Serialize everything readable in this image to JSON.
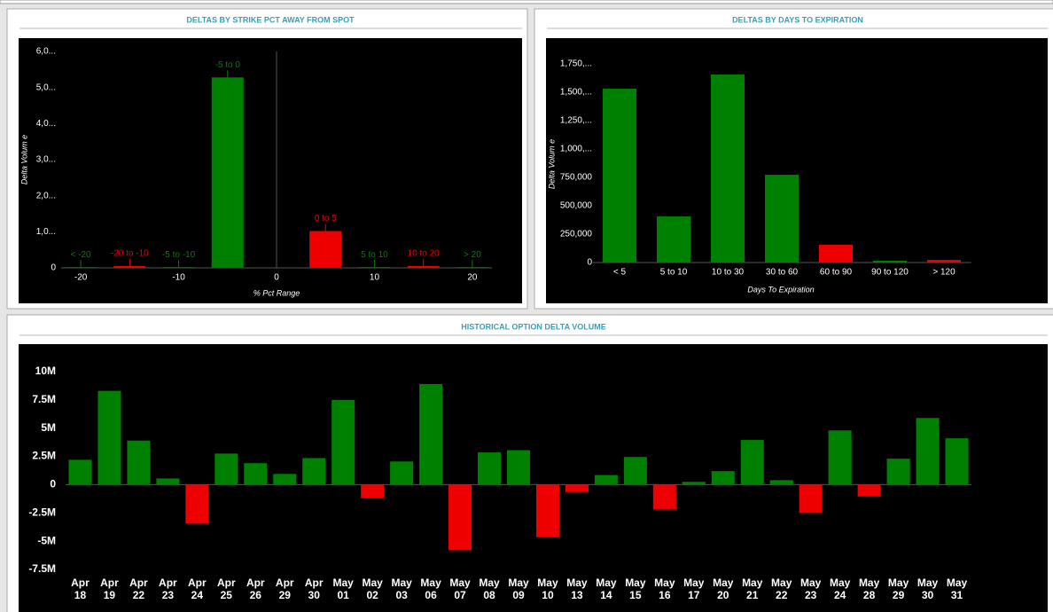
{
  "chart_data": [
    {
      "type": "bar",
      "title": "DELTAS BY STRIKE PCT AWAY FROM SPOT",
      "x_label": "% Pct Range",
      "y_label": "Delta Volum e",
      "categories": [
        "< -20",
        "-20 to -10",
        "-5 to -10",
        "-5 to 0",
        "0 to 5",
        "5 to 10",
        "10 to 20",
        "> 20"
      ],
      "x": [
        -20,
        -15,
        -10,
        -5,
        5,
        10,
        15,
        20
      ],
      "values": [
        20000,
        50000,
        20000,
        5280000,
        1020000,
        20000,
        50000,
        20000
      ],
      "colors": [
        "#008000",
        "#ee0000",
        "#008000",
        "#008000",
        "#ee0000",
        "#008000",
        "#ee0000",
        "#008000"
      ],
      "xlim": [
        -22,
        22
      ],
      "xticks": [
        -20,
        -10,
        0,
        10,
        20
      ],
      "ylim": [
        0,
        6000000
      ],
      "yticks": [
        0,
        {
          "value": 1000000,
          "label": "1,0..."
        },
        {
          "value": 2000000,
          "label": "2,0..."
        },
        {
          "value": 3000000,
          "label": "3,0..."
        },
        {
          "value": 4000000,
          "label": "4,0..."
        },
        {
          "value": 5000000,
          "label": "5,0..."
        },
        {
          "value": 6000000,
          "label": "6,0..."
        }
      ],
      "grid": false
    },
    {
      "type": "bar",
      "title": "DELTAS BY DAYS TO EXPIRATION",
      "x_label": "Days To Expiration",
      "y_label": "Delta Volum e",
      "categories": [
        "< 5",
        "5 to 10",
        "10 to 30",
        "30 to 60",
        "60 to 90",
        "90 to 120",
        "> 120"
      ],
      "values": [
        1531000,
        406000,
        1656000,
        773000,
        156000,
        16000,
        23000
      ],
      "colors": [
        "#008000",
        "#008000",
        "#008000",
        "#008000",
        "#ee0000",
        "#008000",
        "#ee0000"
      ],
      "ylim": [
        0,
        1750000
      ],
      "yticks": [
        0,
        {
          "value": 250000,
          "label": "250,000"
        },
        {
          "value": 500000,
          "label": "500,000"
        },
        {
          "value": 750000,
          "label": "750,000"
        },
        {
          "value": 1000000,
          "label": "1,000,..."
        },
        {
          "value": 1250000,
          "label": "1,250,..."
        },
        {
          "value": 1500000,
          "label": "1,500,..."
        },
        {
          "value": 1750000,
          "label": "1,750,..."
        }
      ],
      "grid": false
    },
    {
      "type": "bar",
      "title": "HISTORICAL OPTION DELTA VOLUME",
      "categories": [
        "Apr 18",
        "Apr 19",
        "Apr 22",
        "Apr 23",
        "Apr 24",
        "Apr 25",
        "Apr 26",
        "Apr 29",
        "Apr 30",
        "May 01",
        "May 02",
        "May 03",
        "May 06",
        "May 07",
        "May 08",
        "May 09",
        "May 10",
        "May 13",
        "May 14",
        "May 15",
        "May 16",
        "May 17",
        "May 20",
        "May 21",
        "May 22",
        "May 23",
        "May 24",
        "May 28",
        "May 29",
        "May 30",
        "May 31"
      ],
      "values": [
        2200000,
        8300000,
        3900000,
        550000,
        -3450000,
        2750000,
        1900000,
        950000,
        2350000,
        7500000,
        -1200000,
        2050000,
        8900000,
        -5800000,
        2850000,
        3050000,
        -4650000,
        -650000,
        850000,
        2450000,
        -2200000,
        250000,
        1200000,
        3950000,
        400000,
        -2500000,
        4800000,
        -1050000,
        2300000,
        5900000,
        4100000
      ],
      "positive_color": "#008000",
      "negative_color": "#ee0000",
      "ylim": [
        -7500000,
        10000000
      ],
      "yticks": [
        {
          "value": -7500000,
          "label": "-7.5M"
        },
        {
          "value": -5000000,
          "label": "-5M"
        },
        {
          "value": -2500000,
          "label": "-2.5M"
        },
        0,
        {
          "value": 2500000,
          "label": "2.5M"
        },
        {
          "value": 5000000,
          "label": "5M"
        },
        {
          "value": 7500000,
          "label": "7.5M"
        },
        {
          "value": 10000000,
          "label": "10M"
        }
      ],
      "grid": false
    }
  ]
}
